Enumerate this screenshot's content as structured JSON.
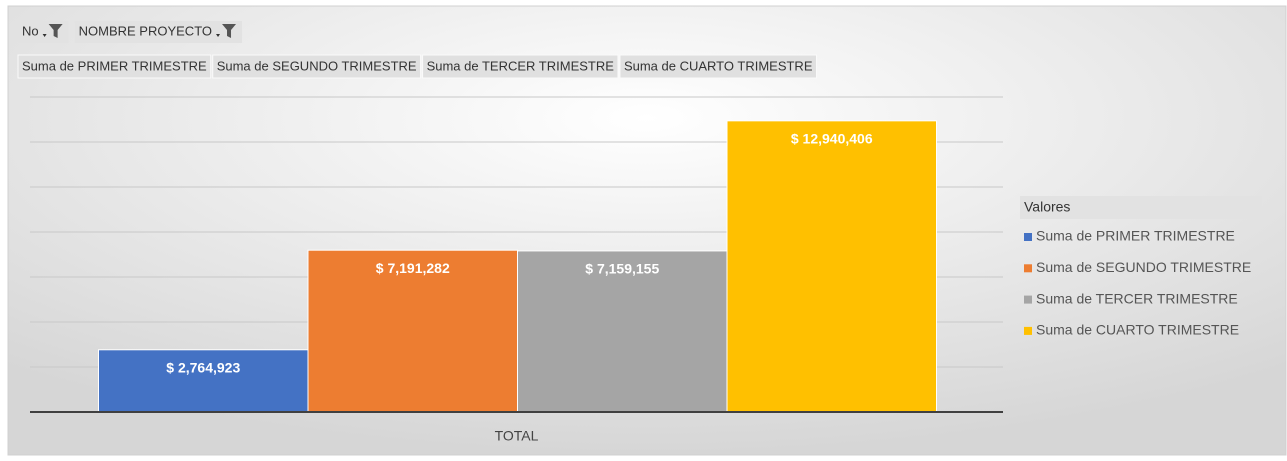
{
  "chart_data": {
    "type": "bar",
    "filter_fields": [
      "No",
      "NOMBRE PROYECTO"
    ],
    "categories": [
      "TOTAL"
    ],
    "series": [
      {
        "name": "Suma de PRIMER TRIMESTRE",
        "color": "#4472c4",
        "values": [
          2764923
        ],
        "value_labels": [
          "$ 2,764,923"
        ]
      },
      {
        "name": "Suma de SEGUNDO TRIMESTRE",
        "color": "#ed7d31",
        "values": [
          7191282
        ],
        "value_labels": [
          "$ 7,191,282"
        ]
      },
      {
        "name": "Suma de TERCER TRIMESTRE",
        "color": "#a5a5a5",
        "values": [
          7159155
        ],
        "value_labels": [
          "$ 7,159,155"
        ]
      },
      {
        "name": "Suma de CUARTO TRIMESTRE",
        "color": "#ffc000",
        "values": [
          12940406
        ],
        "value_labels": [
          "$ 12,940,406"
        ]
      }
    ],
    "legend_title": "Valores",
    "legend_position": "right",
    "ylim": [
      0,
      14000000
    ],
    "yticks": [
      0,
      2000000,
      4000000,
      6000000,
      8000000,
      10000000,
      12000000,
      14000000
    ],
    "grid": true
  }
}
